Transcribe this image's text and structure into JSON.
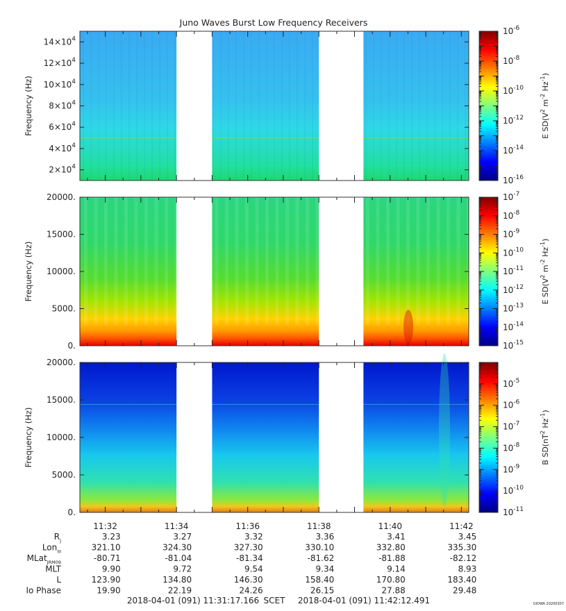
{
  "title": "Juno Waves Burst Low Frequency Receivers",
  "credit": "UIOWA 20200307",
  "colors": {
    "jet": [
      "#00007f",
      "#0000ff",
      "#007fff",
      "#00ffff",
      "#7fff7f",
      "#ffff00",
      "#ff7f00",
      "#ff0000",
      "#7f0000"
    ],
    "gap": "#ffffff"
  },
  "chart_data": [
    {
      "type": "heatmap",
      "panel": "top",
      "ylabel": "Frequency (Hz)",
      "ylim": [
        10000,
        150000
      ],
      "y_ticks": [
        {
          "value": 140000,
          "mant": "14",
          "exp": "4"
        },
        {
          "value": 120000,
          "mant": "12",
          "exp": "4"
        },
        {
          "value": 100000,
          "mant": "10",
          "exp": "4"
        },
        {
          "value": 80000,
          "mant": "8",
          "exp": "4"
        },
        {
          "value": 60000,
          "mant": "6",
          "exp": "4"
        },
        {
          "value": 40000,
          "mant": "4",
          "exp": "4"
        },
        {
          "value": 20000,
          "mant": "2",
          "exp": "4"
        }
      ],
      "colorbar": {
        "label": "E SD(V2 m-2 Hz-1)",
        "label_parts": [
          "E SD(V",
          "2",
          " m",
          "-2",
          " Hz",
          "-1",
          ")"
        ],
        "scale": "log",
        "range": [
          1e-16,
          1e-06
        ],
        "ticks": [
          {
            "exp": "-6"
          },
          {
            "exp": "-8"
          },
          {
            "exp": "-10"
          },
          {
            "exp": "-12"
          },
          {
            "exp": "-14"
          },
          {
            "exp": "-16"
          }
        ]
      },
      "features": {
        "line_hz": 50000
      }
    },
    {
      "type": "heatmap",
      "panel": "middle",
      "ylabel": "Frequency (Hz)",
      "ylim": [
        0,
        20000
      ],
      "y_ticks": [
        {
          "value": 20000,
          "label": "20000."
        },
        {
          "value": 15000,
          "label": "15000."
        },
        {
          "value": 10000,
          "label": "10000."
        },
        {
          "value": 5000,
          "label": "5000."
        },
        {
          "value": 0,
          "label": "0."
        }
      ],
      "colorbar": {
        "label": "E SD(V2 m-2 Hz-1)",
        "label_parts": [
          "E SD(V",
          "2",
          " m",
          "-2",
          " Hz",
          "-1",
          ")"
        ],
        "scale": "log",
        "range": [
          1e-15,
          1e-07
        ],
        "ticks": [
          {
            "exp": "-7"
          },
          {
            "exp": "-8"
          },
          {
            "exp": "-9"
          },
          {
            "exp": "-10"
          },
          {
            "exp": "-11"
          },
          {
            "exp": "-12"
          },
          {
            "exp": "-13"
          },
          {
            "exp": "-14"
          },
          {
            "exp": "-15"
          }
        ]
      }
    },
    {
      "type": "heatmap",
      "panel": "bottom",
      "ylabel": "Frequency (Hz)",
      "ylim": [
        0,
        20000
      ],
      "y_ticks": [
        {
          "value": 20000,
          "label": "20000."
        },
        {
          "value": 15000,
          "label": "15000."
        },
        {
          "value": 10000,
          "label": "10000."
        },
        {
          "value": 5000,
          "label": "5000."
        },
        {
          "value": 0,
          "label": "0."
        }
      ],
      "colorbar": {
        "label": "B SD(nT2 Hz-1)",
        "label_parts": [
          "B SD(nT",
          "2",
          " Hz",
          "-1",
          ")"
        ],
        "scale": "log",
        "range": [
          1e-11,
          0.0001
        ],
        "ticks": [
          {
            "exp": "-5"
          },
          {
            "exp": "-6"
          },
          {
            "exp": "-7"
          },
          {
            "exp": "-8"
          },
          {
            "exp": "-9"
          },
          {
            "exp": "-10"
          },
          {
            "exp": "-11"
          }
        ]
      }
    }
  ],
  "time_axis": {
    "start": "11:31:17.166",
    "end": "11:42:12.491",
    "labels": [
      "11:32",
      "11:34",
      "11:36",
      "11:38",
      "11:40",
      "11:42"
    ],
    "data_gaps": [
      [
        "11:34:00",
        "11:35:00"
      ],
      [
        "11:38:00",
        "11:39:15"
      ]
    ]
  },
  "ephemeris": {
    "rows": [
      {
        "label": "R",
        "sub": "J",
        "values": [
          "3.23",
          "3.27",
          "3.32",
          "3.36",
          "3.41",
          "3.45"
        ]
      },
      {
        "label": "Lon",
        "sub": "III",
        "values": [
          "321.10",
          "324.30",
          "327.30",
          "330.10",
          "332.80",
          "335.30"
        ]
      },
      {
        "label": "MLat",
        "sub": "JRM09",
        "values": [
          "-80.71",
          "-81.04",
          "-81.34",
          "-81.62",
          "-81.88",
          "-82.12"
        ]
      },
      {
        "label": "MLT",
        "sub": "",
        "values": [
          "9.90",
          "9.72",
          "9.54",
          "9.34",
          "9.14",
          "8.93"
        ]
      },
      {
        "label": "L",
        "sub": "",
        "values": [
          "123.90",
          "134.80",
          "146.30",
          "158.40",
          "170.80",
          "183.40"
        ]
      },
      {
        "label": "Io Phase",
        "sub": "",
        "values": [
          "19.90",
          "22.19",
          "24.26",
          "26.15",
          "27.88",
          "29.48"
        ]
      }
    ]
  },
  "footer": {
    "start": "2018-04-01 (091) 11:31:17.166",
    "mid": "SCET",
    "end": "2018-04-01 (091) 11:42:12.491"
  }
}
